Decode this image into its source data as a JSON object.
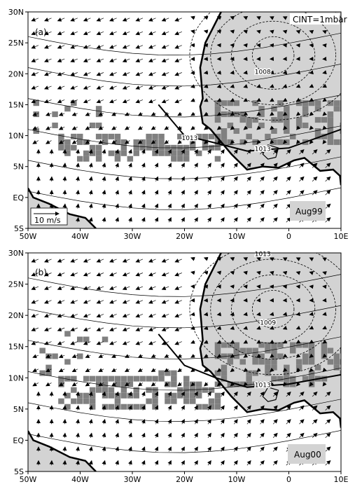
{
  "figure": {
    "contour_interval": "CINT=1mbar",
    "reference_vector": "10 m/s",
    "x_ticks": [
      "50W",
      "40W",
      "30W",
      "20W",
      "10W",
      "0",
      "10E"
    ],
    "y_ticks": [
      "30N",
      "25N",
      "20N",
      "15N",
      "10N",
      "5N",
      "EQ",
      "5S"
    ],
    "x_range_deg": [
      -50,
      10
    ],
    "y_range_deg": [
      -5,
      30
    ],
    "colors": {
      "land": "#d3d3d3",
      "precip": "#808080",
      "contour": "#000000",
      "background": "#ffffff"
    }
  },
  "panels": [
    {
      "id": "a",
      "label": "(a)",
      "period": "Aug99",
      "isobar_labels": [
        {
          "text": "1008",
          "lon": -5,
          "lat": 20
        },
        {
          "text": "1013",
          "lon": -19,
          "lat": 9.3
        },
        {
          "text": "1013",
          "lon": -5,
          "lat": 7.5
        }
      ],
      "high_center": {
        "lon": -3,
        "lat": 23
      }
    },
    {
      "id": "b",
      "label": "(b)",
      "period": "Aug00",
      "isobar_labels": [
        {
          "text": "1013",
          "lon": -5,
          "lat": 29.5
        },
        {
          "text": "1009",
          "lon": -4,
          "lat": 18.5
        },
        {
          "text": "1013",
          "lon": -5,
          "lat": 8.5
        }
      ],
      "high_center": {
        "lon": -3,
        "lat": 21
      }
    }
  ]
}
